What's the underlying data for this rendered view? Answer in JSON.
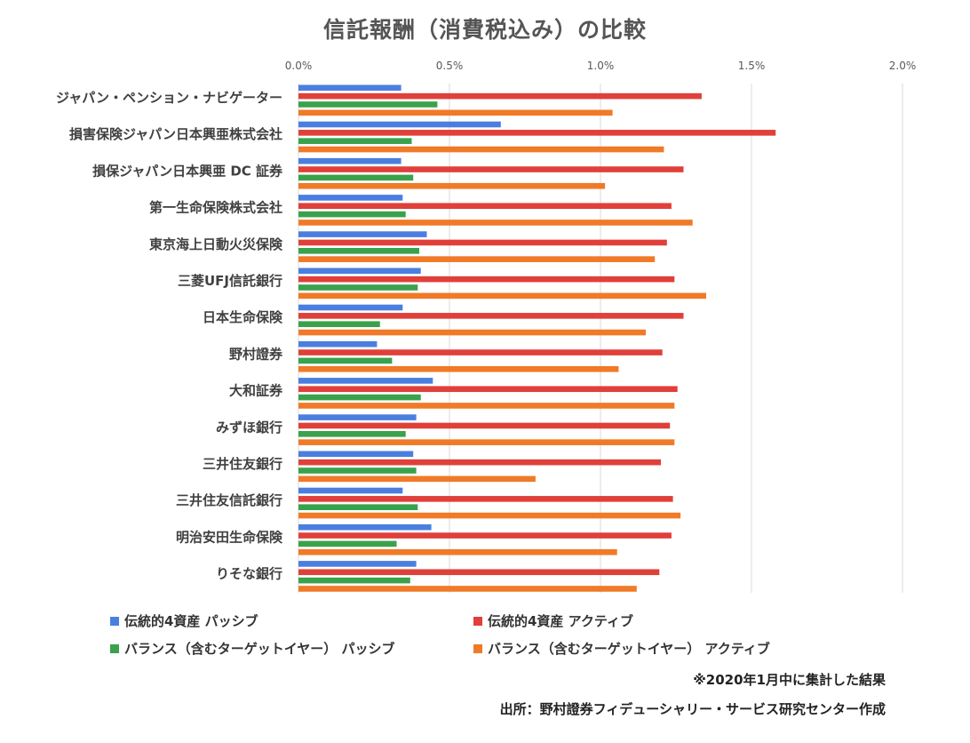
{
  "chart_data": {
    "type": "bar",
    "orientation": "horizontal",
    "title": "信託報酬（消費税込み）の比較",
    "categories": [
      "ジャパン・ペンション・ナビゲーター",
      "損害保険ジャパン日本興亜株式会社",
      "損保ジャパン日本興亜 DC 証券",
      "第一生命保険株式会社",
      "東京海上日動火災保険",
      "三菱UFJ信託銀行",
      "日本生命保険",
      "野村證券",
      "大和証券",
      "みずほ銀行",
      "三井住友銀行",
      "三井住友信託銀行",
      "明治安田生命保険",
      "りそな銀行"
    ],
    "series": [
      {
        "name": "伝統的4資産 パッシブ",
        "color": "#4a7fe0",
        "values": [
          0.34,
          0.67,
          0.34,
          0.345,
          0.425,
          0.405,
          0.345,
          0.26,
          0.445,
          0.39,
          0.38,
          0.345,
          0.44,
          0.39
        ]
      },
      {
        "name": "伝統的4資産 アクティブ",
        "color": "#e0403a",
        "values": [
          1.335,
          1.58,
          1.275,
          1.235,
          1.22,
          1.245,
          1.275,
          1.205,
          1.255,
          1.23,
          1.2,
          1.24,
          1.235,
          1.195
        ]
      },
      {
        "name": "バランス（含むターゲットイヤー） パッシブ",
        "color": "#3aa24c",
        "values": [
          0.46,
          0.375,
          0.38,
          0.355,
          0.4,
          0.395,
          0.27,
          0.31,
          0.405,
          0.355,
          0.39,
          0.395,
          0.325,
          0.37
        ]
      },
      {
        "name": "バランス（含むターゲットイヤー） アクティブ",
        "color": "#f07a28",
        "values": [
          1.04,
          1.21,
          1.015,
          1.305,
          1.18,
          1.35,
          1.15,
          1.06,
          1.245,
          1.245,
          0.785,
          1.265,
          1.055,
          1.12
        ]
      }
    ],
    "xlim": [
      0,
      2.0
    ],
    "xticks": [
      "0.0%",
      "0.5%",
      "1.0%",
      "1.5%",
      "2.0%"
    ],
    "xtick_values": [
      0,
      0.5,
      1.0,
      1.5,
      2.0
    ],
    "grid": "vertical",
    "legend_position": "bottom"
  },
  "notes": {
    "aggregation": "※2020年1月中に集計した結果",
    "source": "出所：野村證券フィデューシャリー・サービス研究センター作成"
  }
}
